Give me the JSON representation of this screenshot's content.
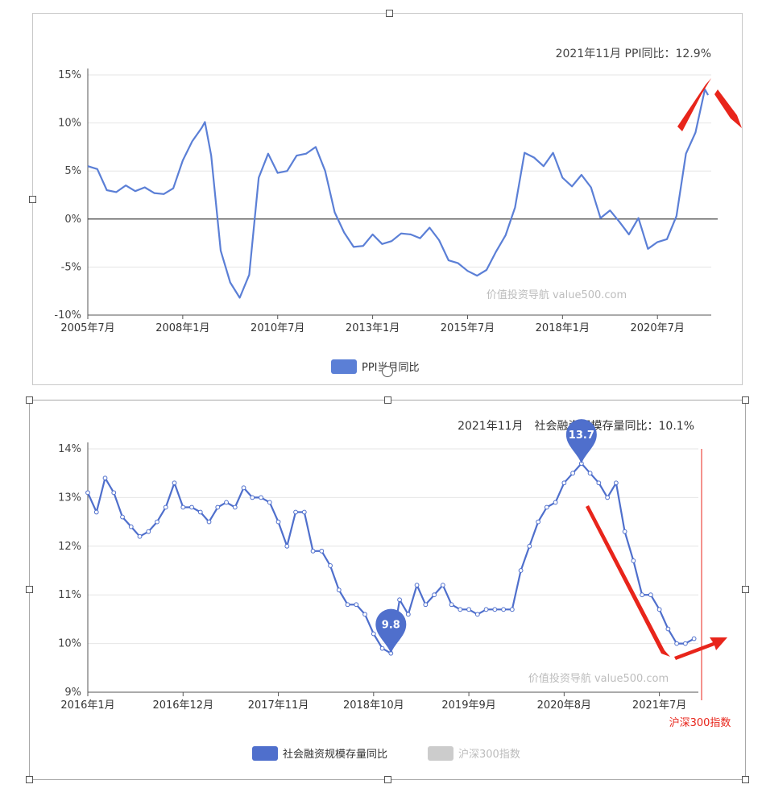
{
  "chart_data": [
    {
      "type": "line",
      "title": "",
      "annotation": "2021年11月 PPI同比：12.9%",
      "xlabel": "",
      "ylabel": "",
      "x_tick_labels": [
        "2005年7月",
        "2008年1月",
        "2010年7月",
        "2013年1月",
        "2015年7月",
        "2018年1月",
        "2020年7月"
      ],
      "y_tick_labels": [
        "15%",
        "10%",
        "5%",
        "0%",
        "-5%",
        "-10%"
      ],
      "ylim": [
        -10,
        15
      ],
      "grid": true,
      "legend": "bottom",
      "watermark": "价值投资导航 value500.com",
      "series": [
        {
          "name": "PPI当月同比",
          "color": "#5b7fd6",
          "x": [
            "2005-07",
            "2005-10",
            "2006-01",
            "2006-04",
            "2006-07",
            "2006-10",
            "2007-01",
            "2007-04",
            "2007-07",
            "2007-10",
            "2008-01",
            "2008-04",
            "2008-07",
            "2008-08",
            "2008-10",
            "2009-01",
            "2009-04",
            "2009-07",
            "2009-10",
            "2010-01",
            "2010-04",
            "2010-07",
            "2010-10",
            "2011-01",
            "2011-04",
            "2011-07",
            "2011-10",
            "2012-01",
            "2012-04",
            "2012-07",
            "2012-10",
            "2013-01",
            "2013-04",
            "2013-07",
            "2013-10",
            "2014-01",
            "2014-04",
            "2014-07",
            "2014-10",
            "2015-01",
            "2015-04",
            "2015-07",
            "2015-10",
            "2016-01",
            "2016-04",
            "2016-07",
            "2016-10",
            "2017-01",
            "2017-04",
            "2017-07",
            "2017-10",
            "2018-01",
            "2018-04",
            "2018-07",
            "2018-10",
            "2019-01",
            "2019-04",
            "2019-07",
            "2019-10",
            "2020-01",
            "2020-04",
            "2020-07",
            "2020-10",
            "2021-01",
            "2021-04",
            "2021-07",
            "2021-10",
            "2021-11"
          ],
          "values": [
            5.5,
            5.2,
            3.0,
            2.8,
            3.5,
            2.9,
            3.3,
            2.7,
            2.6,
            3.2,
            6.1,
            8.1,
            9.5,
            10.1,
            6.6,
            -3.3,
            -6.6,
            -8.2,
            -5.8,
            4.3,
            6.8,
            4.8,
            5.0,
            6.6,
            6.8,
            7.5,
            5.0,
            0.7,
            -1.4,
            -2.9,
            -2.8,
            -1.6,
            -2.6,
            -2.3,
            -1.5,
            -1.6,
            -2.0,
            -0.9,
            -2.2,
            -4.3,
            -4.6,
            -5.4,
            -5.9,
            -5.3,
            -3.4,
            -1.7,
            1.2,
            6.9,
            6.4,
            5.5,
            6.9,
            4.3,
            3.4,
            4.6,
            3.3,
            0.1,
            0.9,
            -0.3,
            -1.6,
            0.1,
            -3.1,
            -2.4,
            -2.1,
            0.3,
            6.8,
            9.0,
            13.5,
            12.9
          ]
        }
      ]
    },
    {
      "type": "line",
      "title": "",
      "annotation": "2021年11月　社会融资规模存量同比：10.1%",
      "xlabel": "",
      "ylabel": "",
      "x_tick_labels": [
        "2016年1月",
        "2016年12月",
        "2017年11月",
        "2018年10月",
        "2019年9月",
        "2020年8月",
        "2021年7月"
      ],
      "y_tick_labels": [
        "14%",
        "13%",
        "12%",
        "11%",
        "10%",
        "9%"
      ],
      "ylim": [
        9,
        14
      ],
      "grid": true,
      "legend": "bottom",
      "watermark": "价值投资导航 value500.com",
      "markers": [
        {
          "label": "13.7",
          "x": "2020-10",
          "value": 13.7
        },
        {
          "label": "9.8",
          "x": "2018-12",
          "value": 9.8
        }
      ],
      "side_label": "沪深300指数",
      "series": [
        {
          "name": "社会融资规模存量同比",
          "color": "#4f6fcc",
          "x": [
            "2016-01",
            "2016-02",
            "2016-03",
            "2016-04",
            "2016-05",
            "2016-06",
            "2016-07",
            "2016-08",
            "2016-09",
            "2016-10",
            "2016-11",
            "2016-12",
            "2017-01",
            "2017-02",
            "2017-03",
            "2017-04",
            "2017-05",
            "2017-06",
            "2017-07",
            "2017-08",
            "2017-09",
            "2017-10",
            "2017-11",
            "2017-12",
            "2018-01",
            "2018-02",
            "2018-03",
            "2018-04",
            "2018-05",
            "2018-06",
            "2018-07",
            "2018-08",
            "2018-09",
            "2018-10",
            "2018-11",
            "2018-12",
            "2019-01",
            "2019-02",
            "2019-03",
            "2019-04",
            "2019-05",
            "2019-06",
            "2019-07",
            "2019-08",
            "2019-09",
            "2019-10",
            "2019-11",
            "2019-12",
            "2020-01",
            "2020-02",
            "2020-03",
            "2020-04",
            "2020-05",
            "2020-06",
            "2020-07",
            "2020-08",
            "2020-09",
            "2020-10",
            "2020-11",
            "2020-12",
            "2021-01",
            "2021-02",
            "2021-03",
            "2021-04",
            "2021-05",
            "2021-06",
            "2021-07",
            "2021-08",
            "2021-09",
            "2021-10",
            "2021-11"
          ],
          "values": [
            13.1,
            12.7,
            13.4,
            13.1,
            12.6,
            12.4,
            12.2,
            12.3,
            12.5,
            12.8,
            13.3,
            12.8,
            12.8,
            12.7,
            12.5,
            12.8,
            12.9,
            12.8,
            13.2,
            13.0,
            13.0,
            12.9,
            12.5,
            12.0,
            12.7,
            12.7,
            11.9,
            11.9,
            11.6,
            11.1,
            10.8,
            10.8,
            10.6,
            10.2,
            9.9,
            9.8,
            10.9,
            10.6,
            11.2,
            10.8,
            11.0,
            11.2,
            10.8,
            10.7,
            10.7,
            10.6,
            10.7,
            10.7,
            10.7,
            10.7,
            11.5,
            12.0,
            12.5,
            12.8,
            12.9,
            13.3,
            13.5,
            13.7,
            13.5,
            13.3,
            13.0,
            13.3,
            12.3,
            11.7,
            11.0,
            11.0,
            10.7,
            10.3,
            10.0,
            10.0,
            10.1
          ]
        },
        {
          "name": "沪深300指数",
          "color": "#cccccc",
          "x": [],
          "values": []
        }
      ]
    }
  ]
}
